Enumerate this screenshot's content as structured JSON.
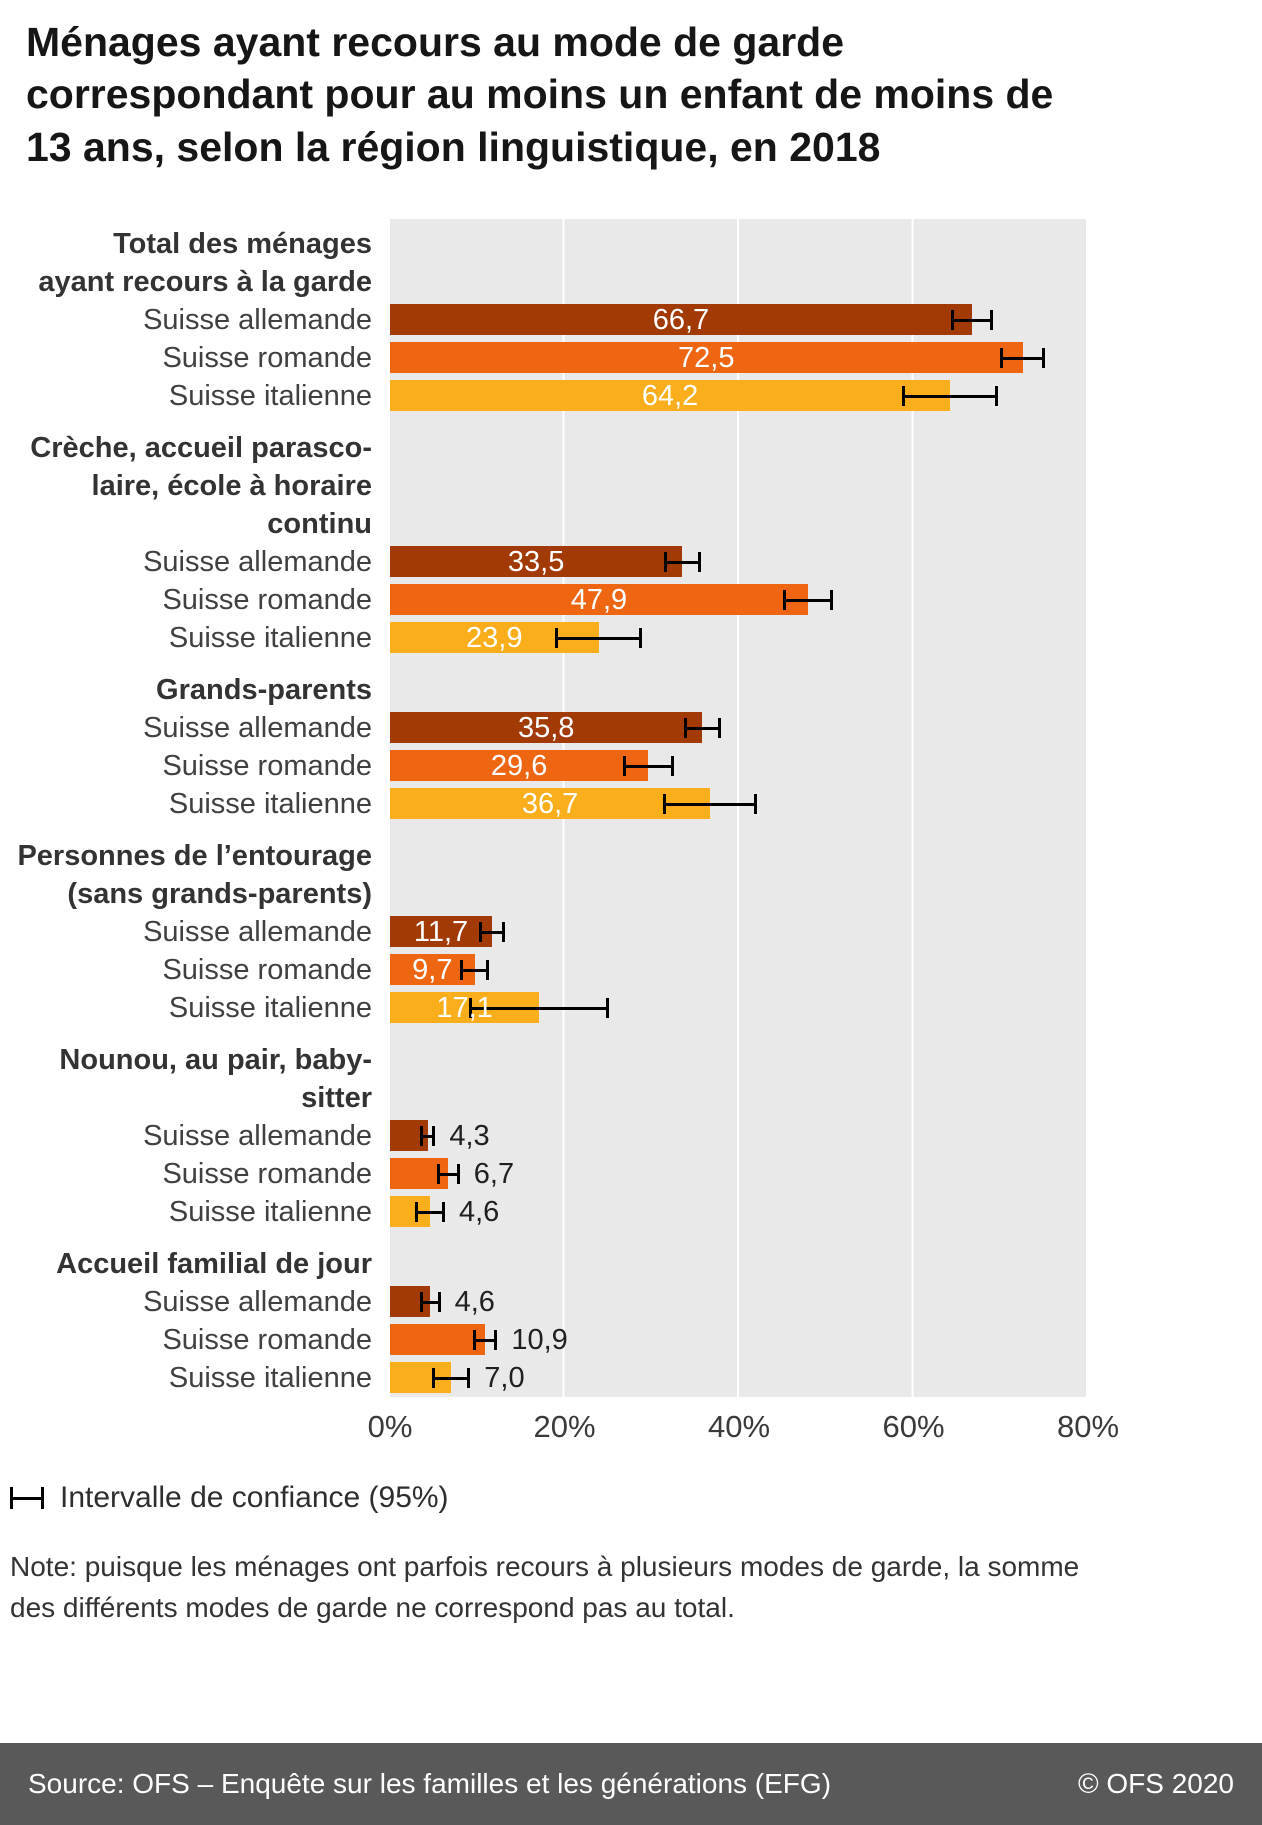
{
  "title": "Ménages ayant recours au mode de garde correspondant pour au moins un enfant de moins de 13 ans, selon la région linguistique, en 2018",
  "legend": {
    "label": "Intervalle de confiance (95%)"
  },
  "note": "Note: puisque les ménages ont parfois recours à plusieurs modes de garde, la somme des différents modes de garde ne correspond pas au total.",
  "footer": {
    "source": "Source: OFS – Enquête sur les familles et les générations (EFG)",
    "copyright": "© OFS 2020"
  },
  "colors": {
    "series": [
      "#A13A05",
      "#EF6612",
      "#FAAE1B"
    ],
    "error_bar": "#000000",
    "plot_background": "#E9E9E9",
    "gridline": "#FFFFFF",
    "footer_background": "#595959"
  },
  "chart_data": {
    "type": "bar",
    "orientation": "horizontal",
    "title": "Ménages ayant recours au mode de garde correspondant pour au moins un enfant de moins de 13 ans, selon la région linguistique, en 2018",
    "x_axis": {
      "min": 0,
      "max": 80,
      "unit": "%",
      "tick_labels": [
        "0%",
        "20%",
        "40%",
        "60%",
        "80%"
      ]
    },
    "grid": true,
    "legend_label": "Intervalle de confiance (95%)",
    "series_labels": [
      "Suisse allemande",
      "Suisse romande",
      "Suisse italienne"
    ],
    "groups": [
      {
        "label_lines": [
          "Total des ménages",
          "ayant recours à la garde"
        ],
        "values": [
          66.7,
          72.5,
          64.2
        ],
        "display": [
          "66,7",
          "72,5",
          "64,2"
        ],
        "ci": [
          [
            64.3,
            69.1
          ],
          [
            69.9,
            75.1
          ],
          [
            58.7,
            69.7
          ]
        ],
        "labels_inside": true
      },
      {
        "label_lines": [
          "Crèche, accueil parasco-",
          "laire, école à horaire continu"
        ],
        "values": [
          33.5,
          47.9,
          23.9
        ],
        "display": [
          "33,5",
          "47,9",
          "23,9"
        ],
        "ci": [
          [
            31.4,
            35.6
          ],
          [
            45.0,
            50.8
          ],
          [
            18.9,
            28.9
          ]
        ],
        "labels_inside": true
      },
      {
        "label_lines": [
          "Grands-parents"
        ],
        "values": [
          35.8,
          29.6,
          36.7
        ],
        "display": [
          "35,8",
          "29,6",
          "36,7"
        ],
        "ci": [
          [
            33.7,
            37.9
          ],
          [
            26.7,
            32.5
          ],
          [
            31.3,
            42.1
          ]
        ],
        "labels_inside": true
      },
      {
        "label_lines": [
          "Personnes de l’entourage",
          "(sans grands-parents)"
        ],
        "values": [
          11.7,
          9.7,
          17.1
        ],
        "display": [
          "11,7",
          "9,7",
          "17,1"
        ],
        "ci": [
          [
            10.2,
            13.2
          ],
          [
            8.0,
            11.4
          ],
          [
            9.1,
            25.1
          ]
        ],
        "labels_inside": true
      },
      {
        "label_lines": [
          "Nounou, au pair, baby-sitter"
        ],
        "values": [
          4.3,
          6.7,
          4.6
        ],
        "display": [
          "4,3",
          "6,7",
          "4,6"
        ],
        "ci": [
          [
            3.4,
            5.2
          ],
          [
            5.4,
            8.0
          ],
          [
            2.9,
            6.3
          ]
        ],
        "labels_inside": false
      },
      {
        "label_lines": [
          "Accueil familial de jour"
        ],
        "values": [
          4.6,
          10.9,
          7.0
        ],
        "display": [
          "4,6",
          "10,9",
          "7,0"
        ],
        "ci": [
          [
            3.4,
            5.8
          ],
          [
            9.5,
            12.3
          ],
          [
            4.8,
            9.2
          ]
        ],
        "labels_inside": false
      }
    ]
  }
}
